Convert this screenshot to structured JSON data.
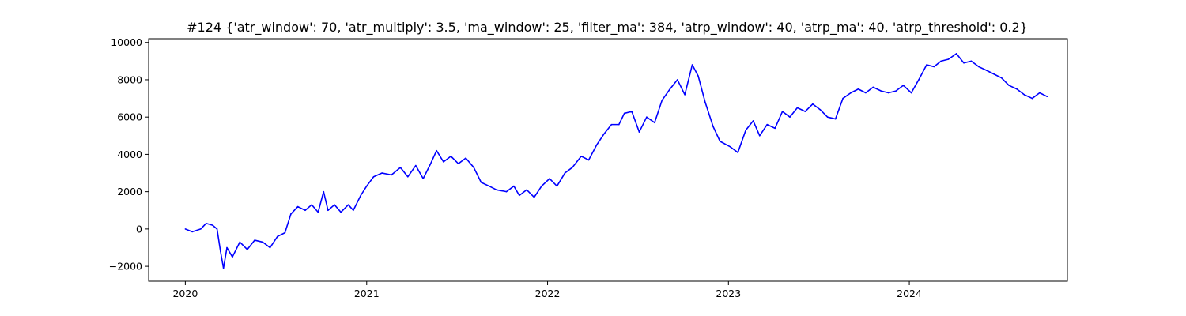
{
  "chart_data": {
    "type": "line",
    "title": "#124 {'atr_window': 70, 'atr_multiply': 3.5, 'ma_window': 25, 'filter_ma': 384, 'atrp_window': 40, 'atrp_ma': 40, 'atrp_threshold': 0.2}",
    "xlabel": "",
    "ylabel": "",
    "x_ticks": [
      "2020",
      "2021",
      "2022",
      "2023",
      "2024"
    ],
    "y_ticks": [
      "10000",
      "8000",
      "6000",
      "4000",
      "2000",
      "0",
      "−2000"
    ],
    "xlim": [
      "2019-10-19",
      "2024-11-15"
    ],
    "ylim": [
      -2800,
      10200
    ],
    "grid": false,
    "colors": {
      "series": "#0000ff"
    },
    "series": [
      {
        "points": [
          [
            "2020-01-01",
            0
          ],
          [
            "2020-01-15",
            -150
          ],
          [
            "2020-02-01",
            0
          ],
          [
            "2020-02-12",
            300
          ],
          [
            "2020-02-25",
            200
          ],
          [
            "2020-03-05",
            0
          ],
          [
            "2020-03-12",
            -1200
          ],
          [
            "2020-03-18",
            -2100
          ],
          [
            "2020-03-25",
            -1000
          ],
          [
            "2020-04-05",
            -1500
          ],
          [
            "2020-04-20",
            -700
          ],
          [
            "2020-05-05",
            -1100
          ],
          [
            "2020-05-20",
            -600
          ],
          [
            "2020-06-05",
            -700
          ],
          [
            "2020-06-20",
            -1000
          ],
          [
            "2020-07-05",
            -400
          ],
          [
            "2020-07-20",
            -200
          ],
          [
            "2020-08-01",
            800
          ],
          [
            "2020-08-15",
            1200
          ],
          [
            "2020-08-30",
            1000
          ],
          [
            "2020-09-12",
            1300
          ],
          [
            "2020-09-25",
            900
          ],
          [
            "2020-10-06",
            2000
          ],
          [
            "2020-10-15",
            1000
          ],
          [
            "2020-10-28",
            1300
          ],
          [
            "2020-11-10",
            900
          ],
          [
            "2020-11-25",
            1300
          ],
          [
            "2020-12-05",
            1000
          ],
          [
            "2020-12-20",
            1800
          ],
          [
            "2021-01-01",
            2300
          ],
          [
            "2021-01-15",
            2800
          ],
          [
            "2021-02-01",
            3000
          ],
          [
            "2021-02-20",
            2900
          ],
          [
            "2021-03-10",
            3300
          ],
          [
            "2021-03-25",
            2800
          ],
          [
            "2021-04-10",
            3400
          ],
          [
            "2021-04-25",
            2700
          ],
          [
            "2021-05-10",
            3500
          ],
          [
            "2021-05-22",
            4200
          ],
          [
            "2021-06-05",
            3600
          ],
          [
            "2021-06-20",
            3900
          ],
          [
            "2021-07-05",
            3500
          ],
          [
            "2021-07-20",
            3800
          ],
          [
            "2021-08-05",
            3300
          ],
          [
            "2021-08-20",
            2500
          ],
          [
            "2021-09-05",
            2300
          ],
          [
            "2021-09-20",
            2100
          ],
          [
            "2021-10-10",
            2000
          ],
          [
            "2021-10-25",
            2300
          ],
          [
            "2021-11-05",
            1800
          ],
          [
            "2021-11-20",
            2100
          ],
          [
            "2021-12-05",
            1700
          ],
          [
            "2021-12-20",
            2300
          ],
          [
            "2022-01-05",
            2700
          ],
          [
            "2022-01-20",
            2300
          ],
          [
            "2022-02-05",
            3000
          ],
          [
            "2022-02-20",
            3300
          ],
          [
            "2022-03-10",
            3900
          ],
          [
            "2022-03-25",
            3700
          ],
          [
            "2022-04-10",
            4500
          ],
          [
            "2022-04-25",
            5100
          ],
          [
            "2022-05-10",
            5600
          ],
          [
            "2022-05-25",
            5600
          ],
          [
            "2022-06-05",
            6200
          ],
          [
            "2022-06-20",
            6300
          ],
          [
            "2022-07-05",
            5200
          ],
          [
            "2022-07-20",
            6000
          ],
          [
            "2022-08-05",
            5700
          ],
          [
            "2022-08-20",
            6900
          ],
          [
            "2022-09-05",
            7500
          ],
          [
            "2022-09-20",
            8000
          ],
          [
            "2022-10-05",
            7200
          ],
          [
            "2022-10-20",
            8800
          ],
          [
            "2022-11-01",
            8200
          ],
          [
            "2022-11-15",
            6800
          ],
          [
            "2022-12-01",
            5500
          ],
          [
            "2022-12-15",
            4700
          ],
          [
            "2023-01-05",
            4400
          ],
          [
            "2023-01-20",
            4100
          ],
          [
            "2023-02-05",
            5300
          ],
          [
            "2023-02-20",
            5800
          ],
          [
            "2023-03-05",
            5000
          ],
          [
            "2023-03-20",
            5600
          ],
          [
            "2023-04-05",
            5400
          ],
          [
            "2023-04-20",
            6300
          ],
          [
            "2023-05-05",
            6000
          ],
          [
            "2023-05-20",
            6500
          ],
          [
            "2023-06-05",
            6300
          ],
          [
            "2023-06-20",
            6700
          ],
          [
            "2023-07-05",
            6400
          ],
          [
            "2023-07-20",
            6000
          ],
          [
            "2023-08-05",
            5900
          ],
          [
            "2023-08-20",
            7000
          ],
          [
            "2023-09-05",
            7300
          ],
          [
            "2023-09-20",
            7500
          ],
          [
            "2023-10-05",
            7300
          ],
          [
            "2023-10-20",
            7600
          ],
          [
            "2023-11-05",
            7400
          ],
          [
            "2023-11-20",
            7300
          ],
          [
            "2023-12-05",
            7400
          ],
          [
            "2023-12-20",
            7700
          ],
          [
            "2024-01-05",
            7300
          ],
          [
            "2024-01-20",
            8000
          ],
          [
            "2024-02-05",
            8800
          ],
          [
            "2024-02-20",
            8700
          ],
          [
            "2024-03-05",
            9000
          ],
          [
            "2024-03-20",
            9100
          ],
          [
            "2024-04-05",
            9400
          ],
          [
            "2024-04-20",
            8900
          ],
          [
            "2024-05-05",
            9000
          ],
          [
            "2024-05-20",
            8700
          ],
          [
            "2024-06-05",
            8500
          ],
          [
            "2024-06-20",
            8300
          ],
          [
            "2024-07-05",
            8100
          ],
          [
            "2024-07-20",
            7700
          ],
          [
            "2024-08-05",
            7500
          ],
          [
            "2024-08-20",
            7200
          ],
          [
            "2024-09-05",
            7000
          ],
          [
            "2024-09-20",
            7300
          ],
          [
            "2024-10-05",
            7100
          ]
        ]
      }
    ]
  }
}
